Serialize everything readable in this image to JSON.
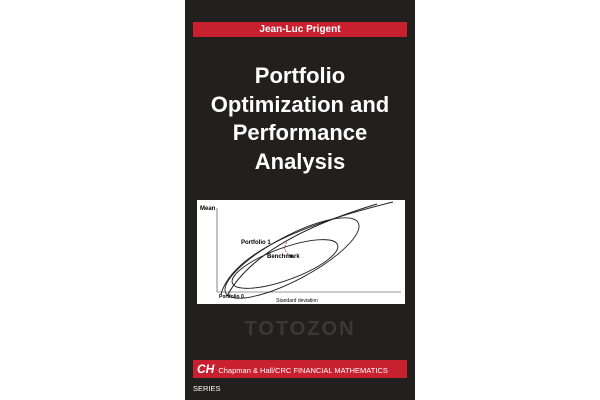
{
  "header": {
    "author": "Jean-Luc Prigent"
  },
  "title": {
    "lines": [
      "Portfolio",
      "Optimization and",
      "Performance",
      "Analysis"
    ]
  },
  "figure": {
    "y_axis_label": "Mean",
    "x_axis_label": "Standard deviation",
    "labels": [
      "Portfolio 1",
      "Benchmark",
      "Portfolio 0"
    ]
  },
  "watermark": "TOTOZON",
  "footer": {
    "logo": "CH",
    "series": "Chapman & Hall/CRC FINANCIAL MATHEMATICS SERIES"
  }
}
